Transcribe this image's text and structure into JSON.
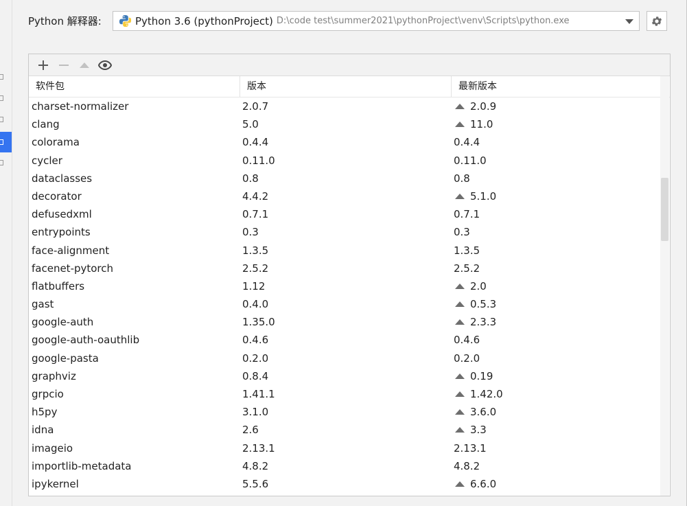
{
  "interpreter": {
    "label": "Python 解释器:",
    "name": "Python 3.6 (pythonProject)",
    "path": "D:\\code test\\summer2021\\pythonProject\\venv\\Scripts\\python.exe"
  },
  "toolbar": {
    "add_icon": "plus-icon",
    "remove_icon": "minus-icon",
    "upgrade_icon": "up-triangle-icon",
    "show_icon": "eye-icon"
  },
  "table": {
    "columns": [
      "软件包",
      "版本",
      "最新版本"
    ],
    "rows": [
      {
        "package": "charset-normalizer",
        "version": "2.0.7",
        "latest": "2.0.9",
        "upgrade": true
      },
      {
        "package": "clang",
        "version": "5.0",
        "latest": "11.0",
        "upgrade": true
      },
      {
        "package": "colorama",
        "version": "0.4.4",
        "latest": "0.4.4",
        "upgrade": false
      },
      {
        "package": "cycler",
        "version": "0.11.0",
        "latest": "0.11.0",
        "upgrade": false
      },
      {
        "package": "dataclasses",
        "version": "0.8",
        "latest": "0.8",
        "upgrade": false
      },
      {
        "package": "decorator",
        "version": "4.4.2",
        "latest": "5.1.0",
        "upgrade": true
      },
      {
        "package": "defusedxml",
        "version": "0.7.1",
        "latest": "0.7.1",
        "upgrade": false
      },
      {
        "package": "entrypoints",
        "version": "0.3",
        "latest": "0.3",
        "upgrade": false
      },
      {
        "package": "face-alignment",
        "version": "1.3.5",
        "latest": "1.3.5",
        "upgrade": false
      },
      {
        "package": "facenet-pytorch",
        "version": "2.5.2",
        "latest": "2.5.2",
        "upgrade": false
      },
      {
        "package": "flatbuffers",
        "version": "1.12",
        "latest": "2.0",
        "upgrade": true
      },
      {
        "package": "gast",
        "version": "0.4.0",
        "latest": "0.5.3",
        "upgrade": true
      },
      {
        "package": "google-auth",
        "version": "1.35.0",
        "latest": "2.3.3",
        "upgrade": true
      },
      {
        "package": "google-auth-oauthlib",
        "version": "0.4.6",
        "latest": "0.4.6",
        "upgrade": false
      },
      {
        "package": "google-pasta",
        "version": "0.2.0",
        "latest": "0.2.0",
        "upgrade": false
      },
      {
        "package": "graphviz",
        "version": "0.8.4",
        "latest": "0.19",
        "upgrade": true
      },
      {
        "package": "grpcio",
        "version": "1.41.1",
        "latest": "1.42.0",
        "upgrade": true
      },
      {
        "package": "h5py",
        "version": "3.1.0",
        "latest": "3.6.0",
        "upgrade": true
      },
      {
        "package": "idna",
        "version": "2.6",
        "latest": "3.3",
        "upgrade": true
      },
      {
        "package": "imageio",
        "version": "2.13.1",
        "latest": "2.13.1",
        "upgrade": false
      },
      {
        "package": "importlib-metadata",
        "version": "4.8.2",
        "latest": "4.8.2",
        "upgrade": false
      },
      {
        "package": "ipykernel",
        "version": "5.5.6",
        "latest": "6.6.0",
        "upgrade": true
      }
    ]
  },
  "colors": {
    "accent": "#3574f0",
    "upgrade_arrow": "#6e6e6e"
  }
}
